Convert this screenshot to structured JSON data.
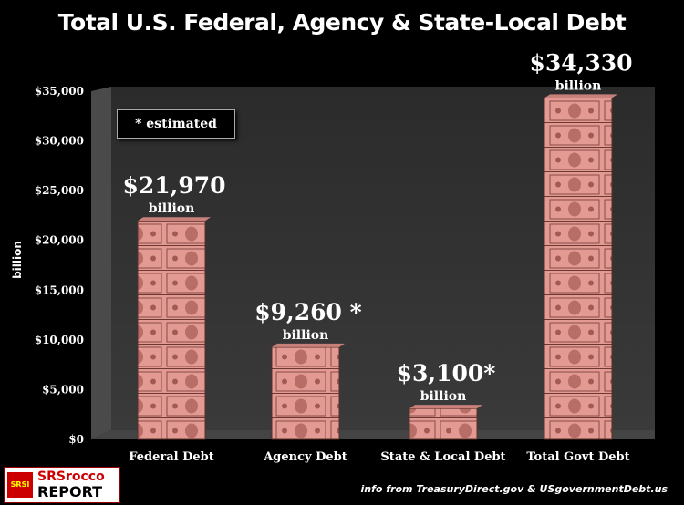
{
  "chart_data": {
    "type": "bar",
    "title": "Total U.S. Federal, Agency & State-Local Debt",
    "ylabel": "billion",
    "ylim": [
      0,
      35000
    ],
    "yticks": [
      "$0",
      "$5,000",
      "$10,000",
      "$15,000",
      "$20,000",
      "$25,000",
      "$30,000",
      "$35,000"
    ],
    "categories": [
      "Federal Debt",
      "Agency Debt",
      "State & Local Debt",
      "Total Govt Debt"
    ],
    "values": [
      21970,
      9260,
      3100,
      34330
    ],
    "value_labels": [
      "$21,970",
      "$9,260 *",
      "$3,100*",
      "$34,330"
    ],
    "unit_label": "billion",
    "bar_color": "#e39a93",
    "background": "#000000"
  },
  "note": "* estimated",
  "credit": "info from TreasuryDirect.gov & USgovernmentDebt.us",
  "logo": {
    "line1": "SRSrocco",
    "line2": "REPORT",
    "badge": "SRSI"
  }
}
